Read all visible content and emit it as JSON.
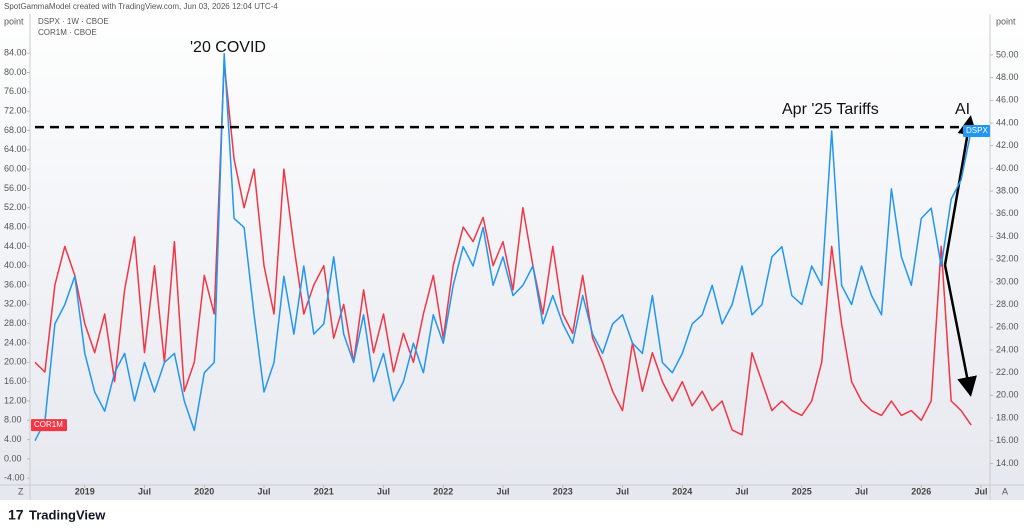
{
  "header": "SpotGammaModel created with TradingView.com, Jun 03, 2026 12:04 UTC-4",
  "legend_lines": [
    "DSPX · 1W · CBOE",
    "COR1M · CBOE"
  ],
  "footer": "TradingView",
  "buttons": [
    "Z",
    "A"
  ],
  "chart_data": {
    "type": "line",
    "annotations": [
      "'20 COVID",
      "Apr '25 Tariffs",
      "AI"
    ],
    "y_label": "point",
    "y2_label": "point",
    "hline": 68.7,
    "x": [
      "2018-08",
      "2018-09",
      "2018-10",
      "2018-11",
      "2018-12",
      "2019-01",
      "2019-02",
      "2019-03",
      "2019-04",
      "2019-05",
      "2019-06",
      "2019-07",
      "2019-08",
      "2019-09",
      "2019-10",
      "2019-11",
      "2019-12",
      "2020-01",
      "2020-02",
      "2020-03",
      "2020-04",
      "2020-05",
      "2020-06",
      "2020-07",
      "2020-08",
      "2020-09",
      "2020-10",
      "2020-11",
      "2020-12",
      "2021-01",
      "2021-02",
      "2021-03",
      "2021-04",
      "2021-05",
      "2021-06",
      "2021-07",
      "2021-08",
      "2021-09",
      "2021-10",
      "2021-11",
      "2021-12",
      "2022-01",
      "2022-02",
      "2022-03",
      "2022-04",
      "2022-05",
      "2022-06",
      "2022-07",
      "2022-08",
      "2022-09",
      "2022-10",
      "2022-11",
      "2022-12",
      "2023-01",
      "2023-02",
      "2023-03",
      "2023-04",
      "2023-05",
      "2023-06",
      "2023-07",
      "2023-08",
      "2023-09",
      "2023-10",
      "2023-11",
      "2023-12",
      "2024-01",
      "2024-02",
      "2024-03",
      "2024-04",
      "2024-05",
      "2024-06",
      "2024-07",
      "2024-08",
      "2024-09",
      "2024-10",
      "2024-11",
      "2024-12",
      "2025-01",
      "2025-02",
      "2025-03",
      "2025-04",
      "2025-05",
      "2025-06",
      "2025-07",
      "2025-08",
      "2025-09",
      "2025-10",
      "2025-11",
      "2025-12",
      "2026-01",
      "2026-02",
      "2026-03",
      "2026-04",
      "2026-05",
      "2026-06"
    ],
    "xlim": [
      "2018-07",
      "2026-08"
    ],
    "xticks": [
      {
        "value": "2019-01",
        "label": "2019"
      },
      {
        "value": "2019-07",
        "label": "Jul"
      },
      {
        "value": "2020-01",
        "label": "2020"
      },
      {
        "value": "2020-07",
        "label": "Jul"
      },
      {
        "value": "2021-01",
        "label": "2021"
      },
      {
        "value": "2021-07",
        "label": "Jul"
      },
      {
        "value": "2022-01",
        "label": "2022"
      },
      {
        "value": "2022-07",
        "label": "Jul"
      },
      {
        "value": "2023-01",
        "label": "2023"
      },
      {
        "value": "2023-07",
        "label": "Jul"
      },
      {
        "value": "2024-01",
        "label": "2024"
      },
      {
        "value": "2024-07",
        "label": "Jul"
      },
      {
        "value": "2025-01",
        "label": "2025"
      },
      {
        "value": "2025-07",
        "label": "Jul"
      },
      {
        "value": "2026-01",
        "label": "2026"
      },
      {
        "value": "2026-07",
        "label": "Jul"
      }
    ],
    "ylim": [
      -5.4,
      88.8
    ],
    "yticks": [
      {
        "value": -4,
        "label": "-4.00"
      },
      {
        "value": 0,
        "label": "0.00"
      },
      {
        "value": 4,
        "label": "4.00"
      },
      {
        "value": 8,
        "label": "8.00"
      },
      {
        "value": 12,
        "label": "12.00"
      },
      {
        "value": 16,
        "label": "16.00"
      },
      {
        "value": 20,
        "label": "20.00"
      },
      {
        "value": 24,
        "label": "24.00"
      },
      {
        "value": 28,
        "label": "28.00"
      },
      {
        "value": 32,
        "label": "32.00"
      },
      {
        "value": 36,
        "label": "36.00"
      },
      {
        "value": 40,
        "label": "40.00"
      },
      {
        "value": 44,
        "label": "44.00"
      },
      {
        "value": 48,
        "label": "48.00"
      },
      {
        "value": 52,
        "label": "52.00"
      },
      {
        "value": 56,
        "label": "56.00"
      },
      {
        "value": 60,
        "label": "60.00"
      },
      {
        "value": 64,
        "label": "64.00"
      },
      {
        "value": 68,
        "label": "68.00"
      },
      {
        "value": 72,
        "label": "72.00"
      },
      {
        "value": 76,
        "label": "76.00"
      },
      {
        "value": 80,
        "label": "80.00"
      },
      {
        "value": 84,
        "label": "84.00"
      }
    ],
    "y2lim": [
      12.1,
      52.2
    ],
    "y2ticks": [
      {
        "value": 14,
        "label": "14.00"
      },
      {
        "value": 16,
        "label": "16.00"
      },
      {
        "value": 18,
        "label": "18.00"
      },
      {
        "value": 20,
        "label": "20.00"
      },
      {
        "value": 22,
        "label": "22.00"
      },
      {
        "value": 24,
        "label": "24.00"
      },
      {
        "value": 26,
        "label": "26.00"
      },
      {
        "value": 28,
        "label": "28.00"
      },
      {
        "value": 30,
        "label": "30.00"
      },
      {
        "value": 32,
        "label": "32.00"
      },
      {
        "value": 34,
        "label": "34.00"
      },
      {
        "value": 36,
        "label": "36.00"
      },
      {
        "value": 38,
        "label": "38.00"
      },
      {
        "value": 40,
        "label": "40.00"
      },
      {
        "value": 42,
        "label": "42.00"
      },
      {
        "value": 44,
        "label": "44.00"
      },
      {
        "value": 46,
        "label": "46.00"
      },
      {
        "value": 48,
        "label": "48.00"
      },
      {
        "value": 50,
        "label": "50.00"
      }
    ],
    "series": [
      {
        "name": "COR1M",
        "color": "#f23645",
        "axis": "y",
        "values": [
          20,
          18,
          36,
          44,
          38,
          28,
          22,
          30,
          16,
          35,
          46,
          22,
          40,
          20,
          45,
          14,
          20,
          38,
          30,
          82,
          62,
          52,
          60,
          40,
          30,
          60,
          44,
          30,
          36,
          40,
          25,
          32,
          20,
          35,
          22,
          30,
          18,
          26,
          20,
          30,
          38,
          25,
          40,
          48,
          45,
          50,
          40,
          45,
          35,
          52,
          40,
          30,
          44,
          30,
          26,
          38,
          25,
          20,
          14,
          10,
          24,
          14,
          22,
          16,
          12,
          16,
          11,
          14,
          10,
          12,
          6,
          5,
          22,
          16,
          10,
          12,
          10,
          9,
          12,
          20,
          44,
          28,
          16,
          12,
          10,
          9,
          12,
          9,
          10,
          8,
          12,
          44,
          12,
          10,
          7
        ]
      },
      {
        "name": "DSPX",
        "color": "#2196f3",
        "axis": "y2",
        "values": [
          16.0,
          17.7,
          26.3,
          28.0,
          30.5,
          23.7,
          20.3,
          18.6,
          22.0,
          23.7,
          19.5,
          22.9,
          20.3,
          22.9,
          23.7,
          19.5,
          16.9,
          22.0,
          22.9,
          50.1,
          35.6,
          34.8,
          27.1,
          20.3,
          22.9,
          30.5,
          25.4,
          31.4,
          25.4,
          26.3,
          32.2,
          25.4,
          22.9,
          27.1,
          21.2,
          23.7,
          19.5,
          21.2,
          24.6,
          22.0,
          27.1,
          24.6,
          29.7,
          33.1,
          31.4,
          34.8,
          29.7,
          32.2,
          28.8,
          29.7,
          31.4,
          26.3,
          28.8,
          26.3,
          24.6,
          28.8,
          25.4,
          23.7,
          26.3,
          27.1,
          24.6,
          23.7,
          28.8,
          22.9,
          22.0,
          23.7,
          26.3,
          27.1,
          29.7,
          26.3,
          28.0,
          31.4,
          27.1,
          28.0,
          32.2,
          33.1,
          28.8,
          28.0,
          31.4,
          29.7,
          43.3,
          29.7,
          28.0,
          31.4,
          28.8,
          27.1,
          38.2,
          32.2,
          29.7,
          35.6,
          36.5,
          31.4,
          37.3,
          39.0,
          43.3
        ]
      }
    ]
  }
}
